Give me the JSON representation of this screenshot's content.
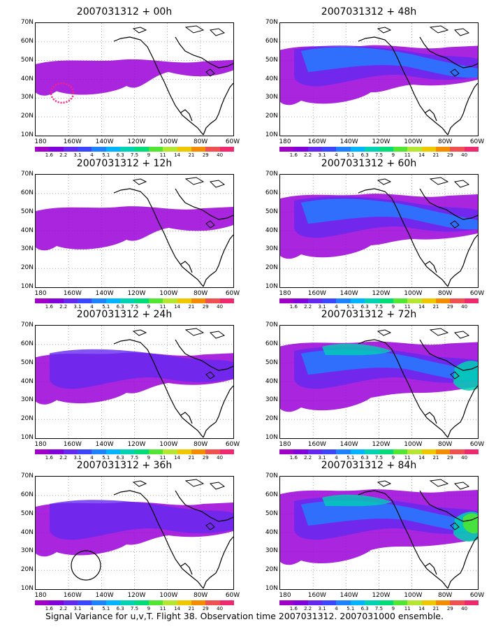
{
  "panels": [
    {
      "title": "2007031312 + 00h",
      "intensity": 0.25,
      "col": 0,
      "row": 0
    },
    {
      "title": "2007031312 + 12h",
      "intensity": 0.4,
      "col": 0,
      "row": 1
    },
    {
      "title": "2007031312 + 24h",
      "intensity": 0.55,
      "col": 0,
      "row": 2
    },
    {
      "title": "2007031312 + 36h",
      "intensity": 0.6,
      "col": 0,
      "row": 3
    },
    {
      "title": "2007031312 + 48h",
      "intensity": 0.7,
      "col": 1,
      "row": 0
    },
    {
      "title": "2007031312 + 60h",
      "intensity": 0.8,
      "col": 1,
      "row": 1
    },
    {
      "title": "2007031312 + 72h",
      "intensity": 0.9,
      "col": 1,
      "row": 2
    },
    {
      "title": "2007031312 + 84h",
      "intensity": 1.0,
      "col": 1,
      "row": 3
    }
  ],
  "lat_labels": [
    "70N",
    "60N",
    "50N",
    "40N",
    "30N",
    "20N",
    "10N"
  ],
  "lon_labels": [
    "180",
    "160W",
    "140W",
    "120W",
    "100W",
    "80W",
    "60W"
  ],
  "colorbar": {
    "labels": [
      "1.6",
      "2.2",
      "3.1",
      "4",
      "5.1",
      "6.3",
      "7.5",
      "9",
      "11",
      "14",
      "21",
      "29",
      "40"
    ],
    "colors": [
      "#a000c8",
      "#8200dc",
      "#6428f0",
      "#3c46ff",
      "#1e82ff",
      "#00b4ff",
      "#00d2b4",
      "#00dc78",
      "#50e632",
      "#b4e632",
      "#f0c800",
      "#f58c00",
      "#f05050",
      "#f0286e"
    ]
  },
  "caption": "Signal Variance for u,v,T. Flight 38. Observation time 2007031312. 2007031000 ensemble."
}
